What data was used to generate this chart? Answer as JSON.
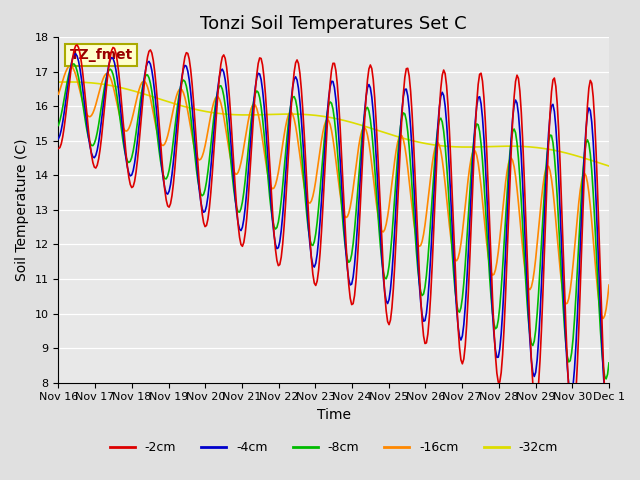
{
  "title": "Tonzi Soil Temperatures Set C",
  "xlabel": "Time",
  "ylabel": "Soil Temperature (C)",
  "ylim": [
    8.0,
    18.0
  ],
  "yticks": [
    8.0,
    9.0,
    10.0,
    11.0,
    12.0,
    13.0,
    14.0,
    15.0,
    16.0,
    17.0,
    18.0
  ],
  "background_color": "#e0e0e0",
  "plot_bg_color": "#e8e8e8",
  "legend_label": "TZ_fmet",
  "legend_box_color": "#ffffcc",
  "legend_box_border": "#aaaa00",
  "legend_text_color": "#990000",
  "series_colors": {
    "-2cm": "#dd0000",
    "-4cm": "#0000cc",
    "-8cm": "#00bb00",
    "-16cm": "#ff8800",
    "-32cm": "#dddd00"
  },
  "n_points": 384,
  "xtick_labels": [
    "Nov 16",
    "Nov 17",
    "Nov 18",
    "Nov 19",
    "Nov 20",
    "Nov 21",
    "Nov 22",
    "Nov 23",
    "Nov 24",
    "Nov 25",
    "Nov 26",
    "Nov 27",
    "Nov 28",
    "Nov 29",
    "Nov 30",
    "Dec 1"
  ],
  "title_fontsize": 13,
  "axis_label_fontsize": 10,
  "tick_fontsize": 8,
  "legend_fontsize": 9,
  "linewidth": 1.2
}
